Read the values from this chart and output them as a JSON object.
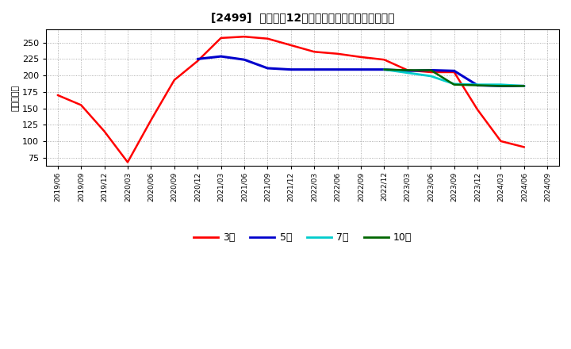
{
  "title": "[2499]  経常利疊12か月移動合計の標準偏差の推移",
  "ylabel": "（百万円）",
  "background_color": "#ffffff",
  "grid_color": "#999999",
  "x_labels": [
    "2019/06",
    "2019/09",
    "2019/12",
    "2020/03",
    "2020/06",
    "2020/09",
    "2020/12",
    "2021/03",
    "2021/06",
    "2021/09",
    "2021/12",
    "2022/03",
    "2022/06",
    "2022/09",
    "2022/12",
    "2023/03",
    "2023/06",
    "2023/09",
    "2023/12",
    "2024/03",
    "2024/06",
    "2024/09"
  ],
  "series_order": [
    "3年",
    "5年",
    "7年",
    "10年"
  ],
  "series": {
    "3年": {
      "color": "#ff0000",
      "linewidth": 1.8,
      "data_x": [
        0,
        1,
        2,
        3,
        4,
        5,
        6,
        7,
        8,
        9,
        10,
        11,
        12,
        13,
        14,
        15,
        16,
        17,
        18,
        19,
        20
      ],
      "data_y": [
        170,
        155,
        115,
        68,
        132,
        193,
        222,
        257,
        259,
        256,
        246,
        236,
        233,
        228,
        224,
        208,
        205,
        205,
        148,
        100,
        91
      ]
    },
    "5年": {
      "color": "#0000cc",
      "linewidth": 2.2,
      "data_x": [
        6,
        7,
        8,
        9,
        10,
        11,
        12,
        13,
        14,
        15,
        16,
        17,
        18,
        19,
        20
      ],
      "data_y": [
        225,
        229,
        224,
        211,
        209,
        209,
        209,
        209,
        209,
        207,
        208,
        207,
        185,
        184,
        184
      ]
    },
    "7年": {
      "color": "#00cccc",
      "linewidth": 2.0,
      "data_x": [
        14,
        15,
        16,
        17,
        18,
        19,
        20
      ],
      "data_y": [
        209,
        204,
        199,
        187,
        186,
        186,
        184
      ]
    },
    "10年": {
      "color": "#006600",
      "linewidth": 1.8,
      "data_x": [
        14,
        15,
        16,
        17,
        18,
        19,
        20
      ],
      "data_y": [
        209,
        208,
        208,
        186,
        185,
        184,
        184
      ]
    }
  },
  "ylim": [
    62,
    270
  ],
  "yticks": [
    75,
    100,
    125,
    150,
    175,
    200,
    225,
    250
  ],
  "legend_labels": [
    "3年",
    "5年",
    "7年",
    "10年"
  ],
  "legend_colors": [
    "#ff0000",
    "#0000cc",
    "#00cccc",
    "#006600"
  ]
}
